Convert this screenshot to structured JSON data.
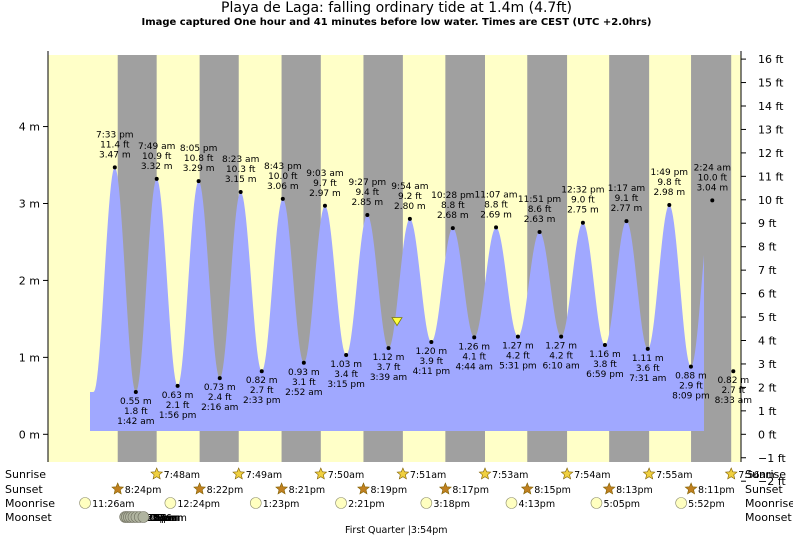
{
  "title": "Playa de Laga: falling  ordinary tide at 1.4m (4.7ft)",
  "subtitle": "Image captured One hour and 41 minutes before low water. Times are CEST (UTC +2.0hrs)",
  "colors": {
    "day": "#ffffc8",
    "night": "#a0a0a0",
    "water": "#a0a8ff",
    "sun": "#f0d040",
    "sunset_star": "#c08020",
    "moon": "#ffffc0",
    "moonset": "#b0b4a0"
  },
  "chart_data": {
    "type": "area",
    "title": "Playa de Laga: falling  ordinary tide at 1.4m (4.7ft)",
    "y_left_ticks": [
      "0 m",
      "1 m",
      "2 m",
      "3 m",
      "4 m"
    ],
    "y_left_values": [
      0,
      1,
      2,
      3,
      4
    ],
    "y_right_ticks": [
      "−2 ft",
      "−1 ft",
      "0 ft",
      "1 ft",
      "2 ft",
      "3 ft",
      "4 ft",
      "5 ft",
      "6 ft",
      "7 ft",
      "8 ft",
      "9 ft",
      "10 ft",
      "11 ft",
      "12 ft",
      "13 ft",
      "14 ft",
      "15 ft",
      "16 ft"
    ],
    "y_right_values": [
      -2,
      -1,
      0,
      1,
      2,
      3,
      4,
      5,
      6,
      7,
      8,
      9,
      10,
      11,
      12,
      13,
      14,
      15,
      16
    ],
    "ylim_m": [
      -0.36,
      4.93
    ],
    "x_span_days": 8.45,
    "current_marker_m": 1.4,
    "extremes": [
      {
        "type": "high",
        "time": "7:33 pm",
        "ft": "11.4 ft",
        "m": "3.47 m",
        "value": 3.47
      },
      {
        "type": "low",
        "time": "1:42 am",
        "ft": "1.8 ft",
        "m": "0.55 m",
        "value": 0.55
      },
      {
        "type": "high",
        "time": "7:49 am",
        "ft": "10.9 ft",
        "m": "3.32 m",
        "value": 3.32
      },
      {
        "type": "low",
        "time": "1:56 pm",
        "ft": "2.1 ft",
        "m": "0.63 m",
        "value": 0.63
      },
      {
        "type": "high",
        "time": "8:05 pm",
        "ft": "10.8 ft",
        "m": "3.29 m",
        "value": 3.29
      },
      {
        "type": "low",
        "time": "2:16 am",
        "ft": "2.4 ft",
        "m": "0.73 m",
        "value": 0.73
      },
      {
        "type": "high",
        "time": "8:23 am",
        "ft": "10.3 ft",
        "m": "3.15 m",
        "value": 3.15
      },
      {
        "type": "low",
        "time": "2:33 pm",
        "ft": "2.7 ft",
        "m": "0.82 m",
        "value": 0.82
      },
      {
        "type": "high",
        "time": "8:43 pm",
        "ft": "10.0 ft",
        "m": "3.06 m",
        "value": 3.06
      },
      {
        "type": "low",
        "time": "2:52 am",
        "ft": "3.1 ft",
        "m": "0.93 m",
        "value": 0.93
      },
      {
        "type": "high",
        "time": "9:03 am",
        "ft": "9.7 ft",
        "m": "2.97 m",
        "value": 2.97
      },
      {
        "type": "low",
        "time": "3:15 pm",
        "ft": "3.4 ft",
        "m": "1.03 m",
        "value": 1.03
      },
      {
        "type": "high",
        "time": "9:27 pm",
        "ft": "9.4 ft",
        "m": "2.85 m",
        "value": 2.85
      },
      {
        "type": "low",
        "time": "3:39 am",
        "ft": "3.7 ft",
        "m": "1.12 m",
        "value": 1.12
      },
      {
        "type": "high",
        "time": "9:54 am",
        "ft": "9.2 ft",
        "m": "2.80 m",
        "value": 2.8
      },
      {
        "type": "low",
        "time": "4:11 pm",
        "ft": "3.9 ft",
        "m": "1.20 m",
        "value": 1.2
      },
      {
        "type": "high",
        "time": "10:28 pm",
        "ft": "8.8 ft",
        "m": "2.68 m",
        "value": 2.68
      },
      {
        "type": "low",
        "time": "4:44 am",
        "ft": "4.1 ft",
        "m": "1.26 m",
        "value": 1.26
      },
      {
        "type": "high",
        "time": "11:07 am",
        "ft": "8.8 ft",
        "m": "2.69 m",
        "value": 2.69
      },
      {
        "type": "low",
        "time": "5:31 pm",
        "ft": "4.2 ft",
        "m": "1.27 m",
        "value": 1.27
      },
      {
        "type": "high",
        "time": "11:51 pm",
        "ft": "8.6 ft",
        "m": "2.63 m",
        "value": 2.63
      },
      {
        "type": "low",
        "time": "6:10 am",
        "ft": "4.2 ft",
        "m": "1.27 m",
        "value": 1.27
      },
      {
        "type": "high",
        "time": "12:32 pm",
        "ft": "9.0 ft",
        "m": "2.75 m",
        "value": 2.75
      },
      {
        "type": "low",
        "time": "6:59 pm",
        "ft": "3.8 ft",
        "m": "1.16 m",
        "value": 1.16
      },
      {
        "type": "high",
        "time": "1:17 am",
        "ft": "9.1 ft",
        "m": "2.77 m",
        "value": 2.77
      },
      {
        "type": "low",
        "time": "7:31 am",
        "ft": "3.6 ft",
        "m": "1.11 m",
        "value": 1.11
      },
      {
        "type": "high",
        "time": "1:49 pm",
        "ft": "9.8 ft",
        "m": "2.98 m",
        "value": 2.98
      },
      {
        "type": "low",
        "time": "8:09 pm",
        "ft": "2.9 ft",
        "m": "0.88 m",
        "value": 0.88
      },
      {
        "type": "high",
        "time": "2:24 am",
        "ft": "10.0 ft",
        "m": "3.04 m",
        "value": 3.04
      },
      {
        "type": "low",
        "time": "8:33 am",
        "ft": "2.7 ft",
        "m": "0.82 m",
        "value": 0.82
      }
    ],
    "bottom": {
      "row_labels": [
        "Sunrise",
        "Sunset",
        "Moonrise",
        "Moonset"
      ],
      "sunrise": [
        "7:48am",
        "7:49am",
        "7:50am",
        "7:51am",
        "7:53am",
        "7:54am",
        "7:55am",
        "7:56am"
      ],
      "sunset": [
        "8:24pm",
        "8:22pm",
        "8:21pm",
        "8:19pm",
        "8:17pm",
        "8:15pm",
        "8:13pm",
        "8:11pm"
      ],
      "moonrise": [
        "11:26am",
        "12:24pm",
        "1:23pm",
        "2:21pm",
        "3:18pm",
        "4:13pm",
        "5:05pm",
        "5:52pm"
      ],
      "moonset": [
        "10:35pm",
        "11:05pm",
        "11:39pm",
        "12:17am",
        "1:01am",
        "1:53am",
        "2:51am",
        "3:56am"
      ],
      "phase_note": "First Quarter |3:54pm"
    }
  }
}
